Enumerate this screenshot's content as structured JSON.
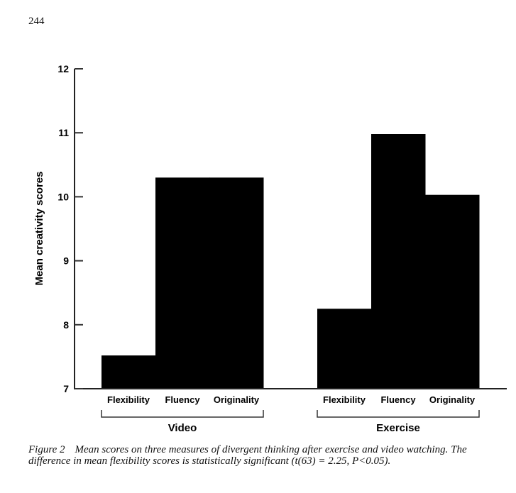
{
  "page": {
    "number": "244"
  },
  "caption": {
    "figure_label": "Figure 2",
    "text": "Mean scores on three measures of divergent thinking after exercise and video watching. The difference in mean flexibility scores is statistically significant (t(63) = 2.25, P<0.05)."
  },
  "chart_data": {
    "type": "bar",
    "title": "",
    "xlabel": "",
    "ylabel": "Mean creativity scores",
    "ylim": [
      7,
      12
    ],
    "yticks": [
      7,
      8,
      9,
      10,
      11,
      12
    ],
    "grid": false,
    "legend": null,
    "groups": [
      {
        "name": "Video",
        "categories": [
          "Flexibility",
          "Fluency",
          "Originality"
        ],
        "values": [
          7.52,
          10.3,
          10.3
        ]
      },
      {
        "name": "Exercise",
        "categories": [
          "Flexibility",
          "Fluency",
          "Originality"
        ],
        "values": [
          8.25,
          10.98,
          10.03
        ]
      }
    ],
    "bar_color": "#000000"
  }
}
